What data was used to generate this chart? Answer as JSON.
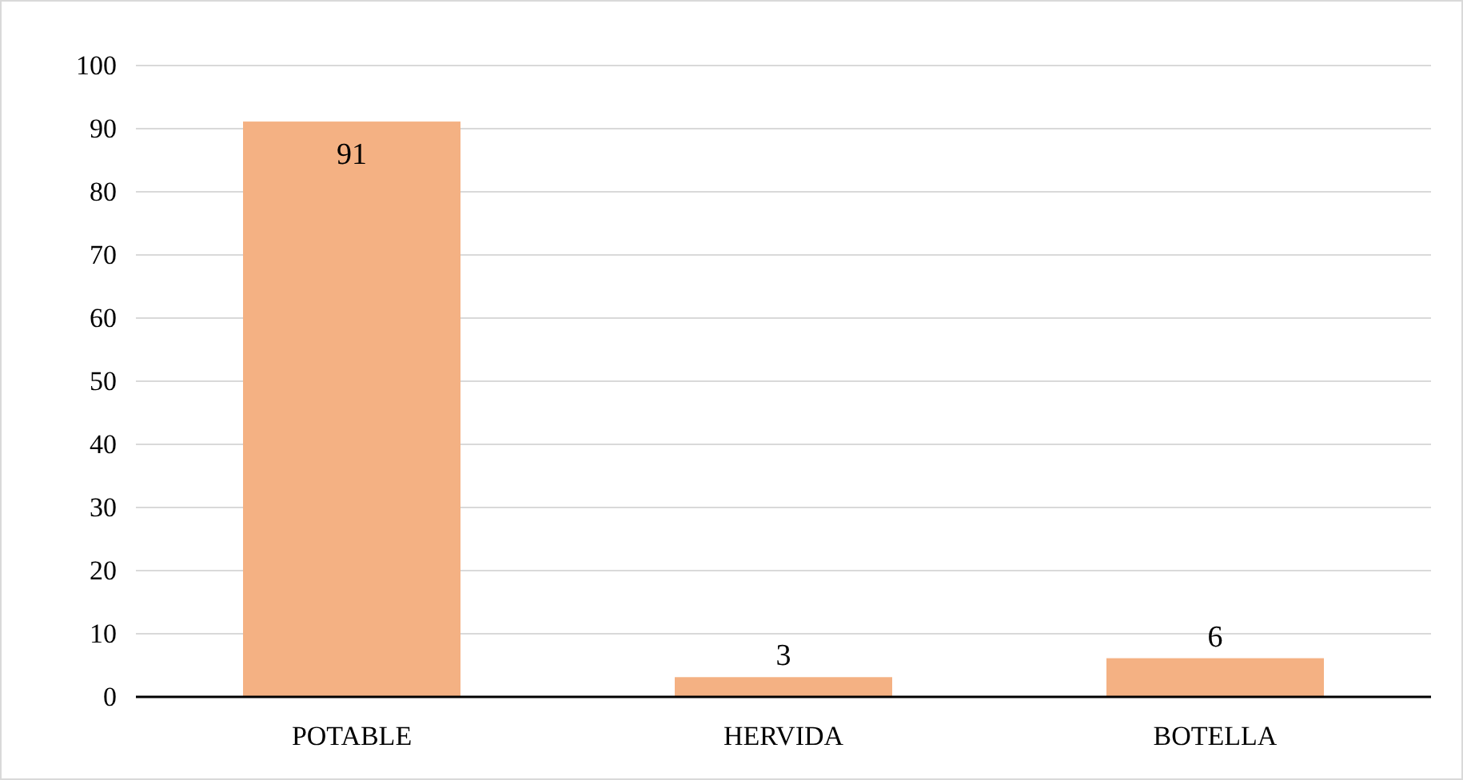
{
  "chart_data": {
    "type": "bar",
    "categories": [
      "POTABLE",
      "HERVIDA",
      "BOTELLA"
    ],
    "values": [
      91,
      3,
      6
    ],
    "color": "#f4b183",
    "ylim": [
      0,
      100
    ],
    "yticks": [
      0,
      10,
      20,
      30,
      40,
      50,
      60,
      70,
      80,
      90,
      100
    ],
    "grid": "y",
    "data_labels": true
  }
}
